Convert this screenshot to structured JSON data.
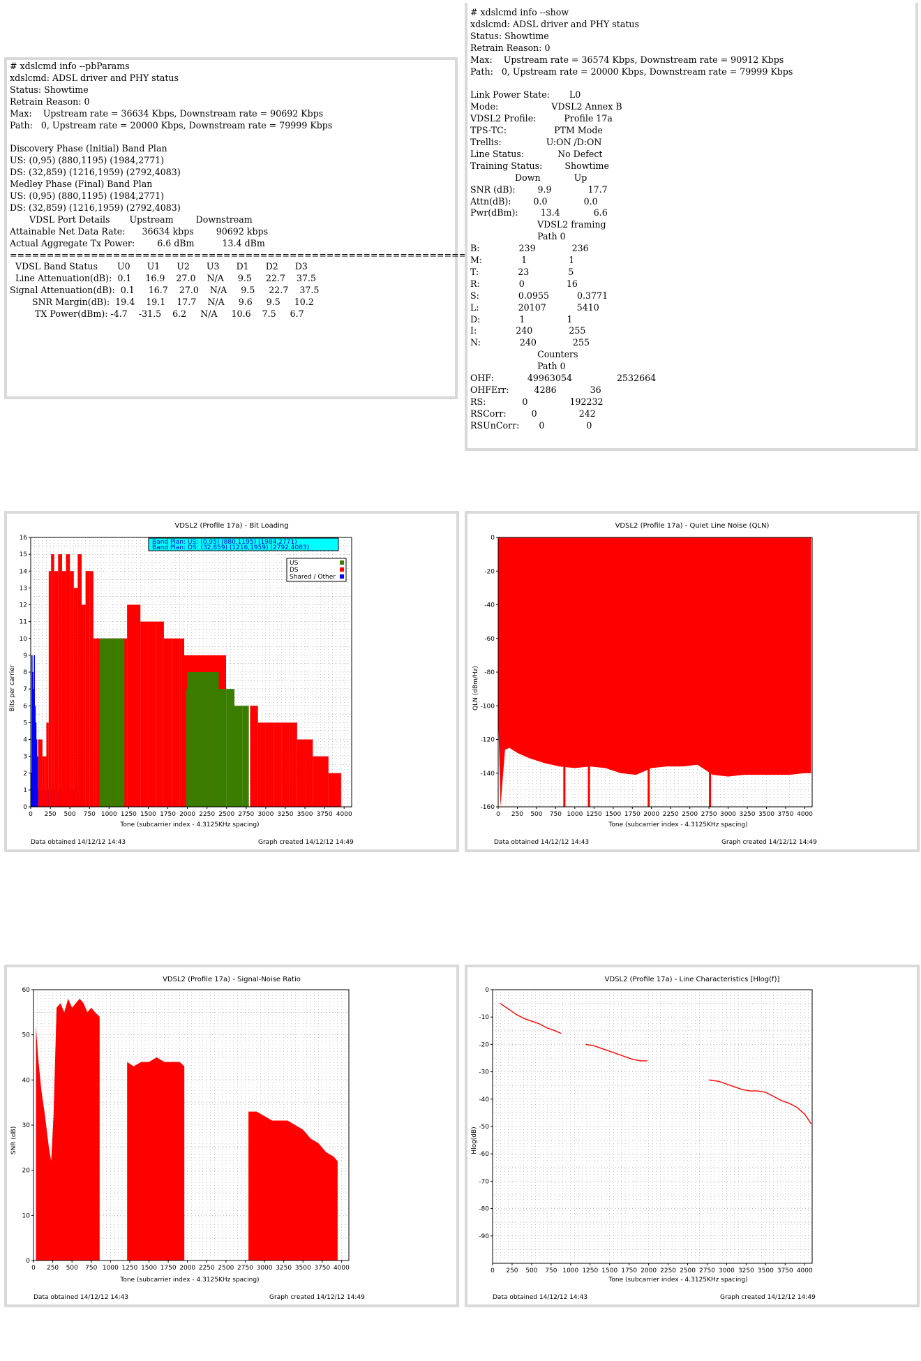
{
  "pbparams": {
    "lines": [
      "# xdslcmd info --pbParams",
      "xdslcmd: ADSL driver and PHY status",
      "Status: Showtime",
      "Retrain Reason: 0",
      "Max:    Upstream rate = 36634 Kbps, Downstream rate = 90692 Kbps",
      "Path:   0, Upstream rate = 20000 Kbps, Downstream rate = 79999 Kbps",
      "",
      "Discovery Phase (Initial) Band Plan",
      "US: (0,95) (880,1195) (1984,2771)",
      "DS: (32,859) (1216,1959) (2792,4083)",
      "Medley Phase (Final) Band Plan",
      "US: (0,95) (880,1195) (1984,2771)",
      "DS: (32,859) (1216,1959) (2792,4083)",
      "       VDSL Port Details       Upstream        Downstream",
      "Attainable Net Data Rate:      36634 kbps        90692 kbps",
      "Actual Aggregate Tx Power:        6.6 dBm          13.4 dBm",
      "==========================================================================",
      "  VDSL Band Status       U0      U1      U2      U3      D1      D2      D3",
      "  Line Attenuation(dB):  0.1     16.9    27.0    N/A     9.5     22.7    37.5",
      "Signal Attenuation(dB):  0.1     16.7    27.0    N/A     9.5     22.7    37.5",
      "        SNR Margin(dB):  19.4    19.1    17.7    N/A     9.6     9.5     10.2",
      "         TX Power(dBm): -4.7    -31.5    6.2     N/A     10.6    7.5     6.7"
    ]
  },
  "show": {
    "lines": [
      "# xdslcmd info --show",
      "xdslcmd: ADSL driver and PHY status",
      "Status: Showtime",
      "Retrain Reason: 0",
      "Max:    Upstream rate = 36574 Kbps, Downstream rate = 90912 Kbps",
      "Path:   0, Upstream rate = 20000 Kbps, Downstream rate = 79999 Kbps",
      "",
      "Link Power State:       L0",
      "Mode:                   VDSL2 Annex B",
      "VDSL2 Profile:          Profile 17a",
      "TPS-TC:                 PTM Mode",
      "Trellis:                U:ON /D:ON",
      "Line Status:            No Defect",
      "Training Status:        Showtime",
      "                Down            Up",
      "SNR (dB):        9.9             17.7",
      "Attn(dB):        0.0             0.0",
      "Pwr(dBm):        13.4            6.6",
      "                        VDSL2 framing",
      "                        Path 0",
      "B:              239             236",
      "M:              1               1",
      "T:              23              5",
      "R:              0               16",
      "S:              0.0955          0.3771",
      "L:              20107           5410",
      "D:              1               1",
      "I:              240             255",
      "N:              240             255",
      "                        Counters",
      "                        Path 0",
      "OHF:            49963054                2532664",
      "OHFErr:         4286            36",
      "RS:             0               192232",
      "RSCorr:         0               242",
      "RSUnCorr:       0               0"
    ]
  },
  "graphs": {
    "bits": {
      "title": "VDSL2 (Profile 17a) - Bit Loading",
      "ylabel": "Bits per carrier",
      "xlabel": "Tone (subcarrier index - 4.3125KHz spacing)",
      "data_obtained": "Data obtained 14/12/12 14:43",
      "graph_created": "Graph created 14/12/12 14:49",
      "bandplan_us": "Band Plan: US: (0,95) (880,1195) (1984,2771)",
      "bandplan_ds": "Band Plan: DS: (32,859) (1216,1959) (2792,4083)",
      "legend": [
        "US",
        "DS",
        "Shared / Other"
      ],
      "colors": {
        "us": "#3a7d00",
        "ds": "#ff0000",
        "shared": "#0000ff",
        "banner": "#00ffff"
      }
    },
    "qln": {
      "title": "VDSL2 (Profile 17a) - Quiet Line Noise (QLN)",
      "ylabel": "QLN (dBm/Hz)",
      "xlabel": "Tone (subcarrier index - 4.3125KHz spacing)",
      "data_obtained": "Data obtained 14/12/12 14:43",
      "graph_created": "Graph created 14/12/12 14:49"
    },
    "snr": {
      "title": "VDSL2 (Profile 17a) - Signal-Noise Ratio",
      "ylabel": "SNR (dB)",
      "xlabel": "Tone (subcarrier index - 4.3125KHz spacing)",
      "data_obtained": "Data obtained 14/12/12 14:43",
      "graph_created": "Graph created 14/12/12 14:49"
    },
    "hlog": {
      "title": "VDSL2 (Profile 17a) - Line Characteristics [Hlog(f)]",
      "ylabel": "Hlog(dB)",
      "xlabel": "Tone (subcarrier index - 4.3125KHz spacing)",
      "data_obtained": "Data obtained 14/12/12 14:43",
      "graph_created": "Graph created 14/12/12 14:49"
    }
  },
  "chart_data": [
    {
      "type": "bar",
      "title": "VDSL2 (Profile 17a) - Bit Loading",
      "xlabel": "Tone (subcarrier index - 4.3125KHz spacing)",
      "ylabel": "Bits per carrier",
      "xlim": [
        0,
        4096
      ],
      "ylim": [
        0,
        16
      ],
      "xticks": [
        0,
        250,
        500,
        750,
        1000,
        1250,
        1500,
        1750,
        2000,
        2250,
        2500,
        2750,
        3000,
        3250,
        3500,
        3750,
        4000
      ],
      "yticks": [
        0,
        1,
        2,
        3,
        4,
        5,
        6,
        7,
        8,
        9,
        10,
        11,
        12,
        13,
        14,
        15,
        16
      ],
      "series": [
        {
          "name": "Shared / Other",
          "color": "#0000ff",
          "points": [
            [
              0,
              2
            ],
            [
              10,
              9
            ],
            [
              20,
              8
            ],
            [
              30,
              7
            ],
            [
              40,
              9
            ],
            [
              50,
              6
            ],
            [
              60,
              5
            ],
            [
              70,
              4
            ],
            [
              80,
              3
            ],
            [
              90,
              1
            ],
            [
              840,
              10
            ],
            [
              850,
              10
            ],
            [
              860,
              10
            ]
          ]
        },
        {
          "name": "DS",
          "color": "#ff0000",
          "points": [
            [
              95,
              4
            ],
            [
              120,
              4
            ],
            [
              150,
              3
            ],
            [
              180,
              3
            ],
            [
              200,
              5
            ],
            [
              230,
              14
            ],
            [
              260,
              15
            ],
            [
              300,
              14
            ],
            [
              350,
              15
            ],
            [
              400,
              14
            ],
            [
              450,
              15
            ],
            [
              500,
              14
            ],
            [
              550,
              13
            ],
            [
              600,
              15
            ],
            [
              650,
              12
            ],
            [
              700,
              14
            ],
            [
              750,
              14
            ],
            [
              800,
              10
            ],
            [
              830,
              10
            ],
            [
              1230,
              12
            ],
            [
              1300,
              12
            ],
            [
              1400,
              11
            ],
            [
              1500,
              11
            ],
            [
              1600,
              11
            ],
            [
              1700,
              10
            ],
            [
              1800,
              10
            ],
            [
              1900,
              10
            ],
            [
              1959,
              9
            ],
            [
              2800,
              6
            ],
            [
              2900,
              5
            ],
            [
              3000,
              5
            ],
            [
              3100,
              5
            ],
            [
              3200,
              5
            ],
            [
              3300,
              5
            ],
            [
              3400,
              4
            ],
            [
              3500,
              4
            ],
            [
              3600,
              3
            ],
            [
              3700,
              3
            ],
            [
              3800,
              2
            ],
            [
              3900,
              2
            ],
            [
              3950,
              2
            ]
          ]
        },
        {
          "name": "US",
          "color": "#3a7d00",
          "points": [
            [
              880,
              10
            ],
            [
              900,
              10
            ],
            [
              950,
              10
            ],
            [
              1000,
              10
            ],
            [
              1050,
              10
            ],
            [
              1100,
              10
            ],
            [
              1195,
              0
            ],
            [
              1984,
              7
            ],
            [
              2000,
              8
            ],
            [
              2100,
              8
            ],
            [
              2200,
              8
            ],
            [
              2300,
              8
            ],
            [
              2400,
              7
            ],
            [
              2500,
              7
            ],
            [
              2600,
              6
            ],
            [
              2700,
              6
            ],
            [
              2771,
              6
            ]
          ]
        }
      ]
    },
    {
      "type": "area",
      "title": "VDSL2 (Profile 17a) - Quiet Line Noise (QLN)",
      "xlabel": "Tone (subcarrier index - 4.3125KHz spacing)",
      "ylabel": "QLN (dBm/Hz)",
      "xlim": [
        0,
        4096
      ],
      "ylim": [
        -160,
        0
      ],
      "xticks": [
        0,
        250,
        500,
        750,
        1000,
        1250,
        1500,
        1750,
        2000,
        2250,
        2500,
        2750,
        3000,
        3250,
        3500,
        3750,
        4000
      ],
      "yticks": [
        0,
        -20,
        -40,
        -60,
        -80,
        -100,
        -120,
        -140,
        -160
      ],
      "points": [
        [
          0,
          -105
        ],
        [
          30,
          -160
        ],
        [
          90,
          -126
        ],
        [
          150,
          -125
        ],
        [
          250,
          -128
        ],
        [
          400,
          -131
        ],
        [
          600,
          -134
        ],
        [
          800,
          -136
        ],
        [
          1000,
          -137
        ],
        [
          1200,
          -136
        ],
        [
          1400,
          -137
        ],
        [
          1600,
          -140
        ],
        [
          1800,
          -141
        ],
        [
          2000,
          -137
        ],
        [
          2200,
          -136
        ],
        [
          2400,
          -136
        ],
        [
          2600,
          -135
        ],
        [
          2800,
          -141
        ],
        [
          3000,
          -142
        ],
        [
          3200,
          -141
        ],
        [
          3400,
          -141
        ],
        [
          3600,
          -141
        ],
        [
          3800,
          -141
        ],
        [
          4000,
          -140
        ],
        [
          4083,
          -140
        ]
      ]
    },
    {
      "type": "area",
      "title": "VDSL2 (Profile 17a) - Signal-Noise Ratio",
      "xlabel": "Tone (subcarrier index - 4.3125KHz spacing)",
      "ylabel": "SNR (dB)",
      "xlim": [
        0,
        4096
      ],
      "ylim": [
        0,
        60
      ],
      "xticks": [
        0,
        250,
        500,
        750,
        1000,
        1250,
        1500,
        1750,
        2000,
        2250,
        2500,
        2750,
        3000,
        3250,
        3500,
        3750,
        4000
      ],
      "yticks": [
        0,
        10,
        20,
        30,
        40,
        50,
        60
      ],
      "segments": [
        [
          [
            32,
            52
          ],
          [
            60,
            45
          ],
          [
            100,
            38
          ],
          [
            150,
            32
          ],
          [
            200,
            25
          ],
          [
            230,
            22
          ],
          [
            260,
            32
          ],
          [
            300,
            56
          ],
          [
            350,
            57
          ],
          [
            400,
            55
          ],
          [
            450,
            58
          ],
          [
            500,
            56
          ],
          [
            550,
            57
          ],
          [
            600,
            58
          ],
          [
            650,
            57
          ],
          [
            700,
            55
          ],
          [
            750,
            56
          ],
          [
            800,
            55
          ],
          [
            859,
            54
          ]
        ],
        [
          [
            1216,
            44
          ],
          [
            1300,
            43
          ],
          [
            1400,
            44
          ],
          [
            1500,
            44
          ],
          [
            1600,
            45
          ],
          [
            1700,
            44
          ],
          [
            1800,
            44
          ],
          [
            1900,
            44
          ],
          [
            1959,
            43
          ]
        ],
        [
          [
            2792,
            33
          ],
          [
            2900,
            33
          ],
          [
            3000,
            32
          ],
          [
            3100,
            31
          ],
          [
            3200,
            31
          ],
          [
            3300,
            31
          ],
          [
            3400,
            30
          ],
          [
            3500,
            29
          ],
          [
            3600,
            27
          ],
          [
            3700,
            26
          ],
          [
            3800,
            24
          ],
          [
            3900,
            23
          ],
          [
            3950,
            22
          ]
        ]
      ]
    },
    {
      "type": "line",
      "title": "VDSL2 (Profile 17a) - Line Characteristics [Hlog(f)]",
      "xlabel": "Tone (subcarrier index - 4.3125KHz spacing)",
      "ylabel": "Hlog(dB)",
      "xlim": [
        0,
        4096
      ],
      "ylim": [
        -100,
        0
      ],
      "xticks": [
        0,
        250,
        500,
        750,
        1000,
        1250,
        1500,
        1750,
        2000,
        2250,
        2500,
        2750,
        3000,
        3250,
        3500,
        3750,
        4000
      ],
      "yticks": [
        0,
        -10,
        -20,
        -30,
        -40,
        -50,
        -60,
        -70,
        -80,
        -90
      ],
      "segments": [
        [
          [
            95,
            -5
          ],
          [
            200,
            -7
          ],
          [
            300,
            -9
          ],
          [
            400,
            -10.5
          ],
          [
            500,
            -11.5
          ],
          [
            600,
            -12.5
          ],
          [
            700,
            -14
          ],
          [
            800,
            -15
          ],
          [
            880,
            -16
          ]
        ],
        [
          [
            1195,
            -20
          ],
          [
            1300,
            -20.5
          ],
          [
            1400,
            -21.5
          ],
          [
            1500,
            -22.5
          ],
          [
            1600,
            -23.5
          ],
          [
            1700,
            -24.5
          ],
          [
            1800,
            -25.5
          ],
          [
            1900,
            -26
          ],
          [
            1984,
            -26
          ]
        ],
        [
          [
            2771,
            -33
          ],
          [
            2900,
            -33.5
          ],
          [
            3000,
            -34.5
          ],
          [
            3100,
            -35.5
          ],
          [
            3200,
            -36.5
          ],
          [
            3300,
            -37
          ],
          [
            3400,
            -37
          ],
          [
            3500,
            -37.5
          ],
          [
            3600,
            -39
          ],
          [
            3700,
            -40.5
          ],
          [
            3800,
            -41.5
          ],
          [
            3900,
            -43
          ],
          [
            4000,
            -45.5
          ],
          [
            4083,
            -49
          ]
        ]
      ]
    }
  ]
}
